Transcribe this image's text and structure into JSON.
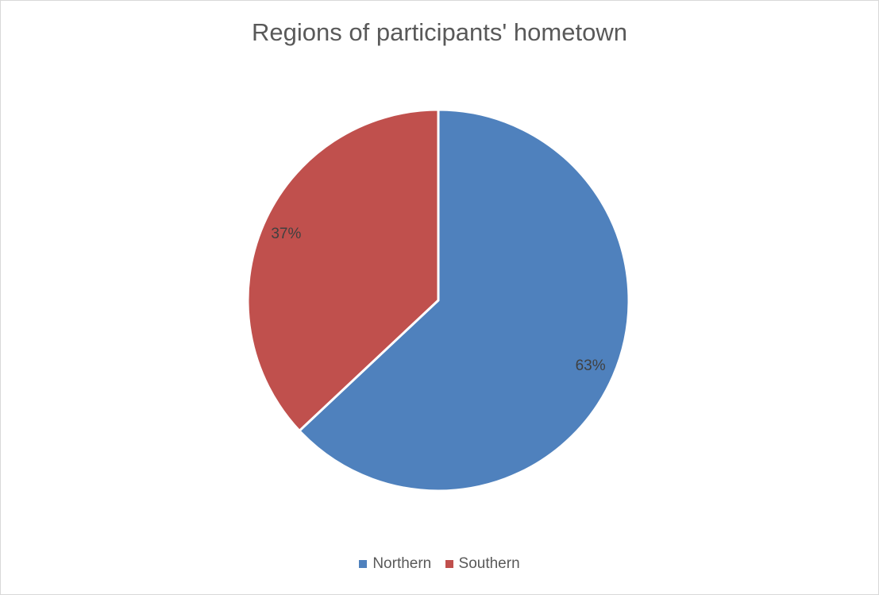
{
  "chart_data": {
    "type": "pie",
    "title": "Regions of participants' hometown",
    "categories": [
      "Northern",
      "Southern"
    ],
    "values": [
      63,
      37
    ],
    "data_labels": [
      "63%",
      "37%"
    ],
    "colors": [
      "#4f81bd",
      "#c0504d"
    ],
    "legend_position": "bottom",
    "start_angle_deg": 0,
    "direction": "clockwise"
  }
}
